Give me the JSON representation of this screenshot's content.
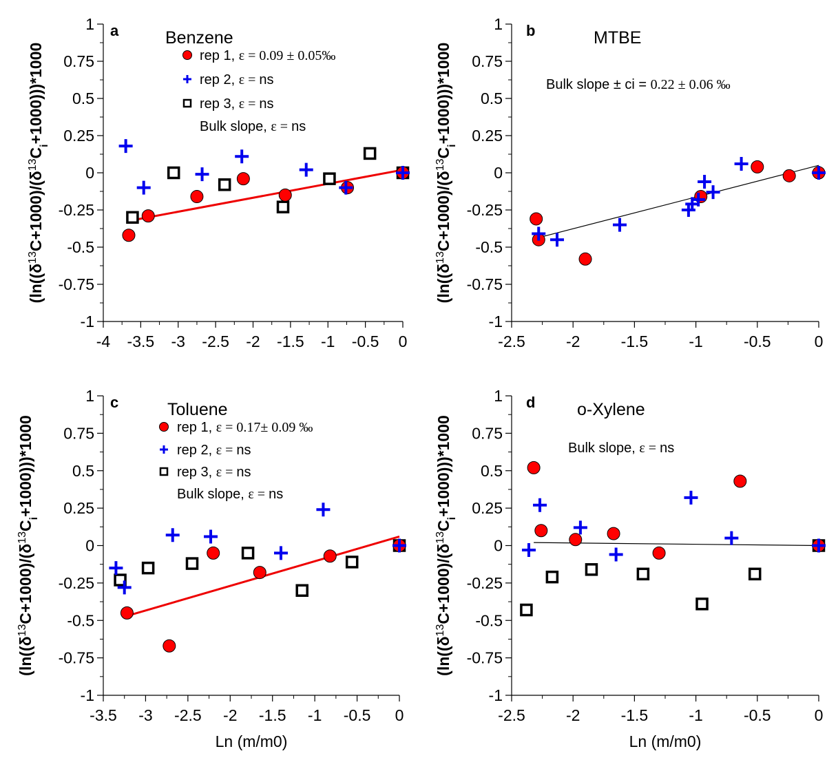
{
  "colors": {
    "rep1_fill": "#ff0000",
    "rep2": "#0000ee",
    "rep3": "#000000",
    "fit_red": "#ee0000",
    "fit_black": "#000000"
  },
  "chart_data": [
    {
      "type": "scatter",
      "letter": "a",
      "title": "Benzene",
      "xlim": [
        -4,
        0
      ],
      "ylim": [
        -1,
        1
      ],
      "xticks": [
        -4,
        -3.5,
        -3,
        -2.5,
        -2,
        -1.5,
        -1,
        -0.5,
        0
      ],
      "xticklabels": [
        "-4",
        "-3.5",
        "-3",
        "-2.5",
        "-2",
        "-1.5",
        "-1",
        "-0.5",
        "0"
      ],
      "yticks": [
        1,
        0.75,
        0.5,
        0.25,
        0,
        -0.25,
        -0.5,
        -0.75,
        -1
      ],
      "yticklabels": [
        "1",
        "0.75",
        "0.5",
        "0.25",
        "0",
        "-0.25",
        "-0.5",
        "-0.75",
        "-1"
      ],
      "ylabel_parts": [
        "(ln((δ",
        "13",
        "C+1000)/(δ",
        "13",
        "C",
        "i",
        "+1000)))*1000"
      ],
      "xlabel": "",
      "legend": [
        {
          "marker": "circle",
          "prefix": "rep 1, ",
          "eps": "ε = ",
          "value": " 0.09 ± 0.05‰"
        },
        {
          "marker": "plus",
          "prefix": "rep 2, ",
          "eps": "ε = ",
          "value": "ns"
        },
        {
          "marker": "square",
          "prefix": "rep 3, ",
          "eps": "ε = ",
          "value": "ns"
        },
        {
          "marker": "none",
          "prefix": "Bulk slope, ",
          "eps": "ε = ",
          "value": " ns"
        }
      ],
      "series": [
        {
          "marker": "circle",
          "x": [
            -3.66,
            -3.4,
            -2.75,
            -2.13,
            -1.57,
            -0.74,
            0
          ],
          "y": [
            -0.42,
            -0.29,
            -0.16,
            -0.04,
            -0.15,
            -0.1,
            0
          ]
        },
        {
          "marker": "plus",
          "x": [
            -3.7,
            -3.46,
            -2.68,
            -2.15,
            -1.29,
            -0.76,
            0
          ],
          "y": [
            0.18,
            -0.1,
            -0.01,
            0.11,
            0.02,
            -0.1,
            0
          ]
        },
        {
          "marker": "square",
          "x": [
            -3.61,
            -3.06,
            -2.38,
            -1.6,
            -0.98,
            -0.44,
            0
          ],
          "y": [
            -0.3,
            0,
            -0.08,
            -0.23,
            -0.04,
            0.13,
            0
          ]
        }
      ],
      "fit": {
        "color": "red",
        "x": [
          -3.62,
          0
        ],
        "y": [
          -0.32,
          0.02
        ]
      }
    },
    {
      "type": "scatter",
      "letter": "b",
      "title": "MTBE",
      "xlim": [
        -2.5,
        0
      ],
      "ylim": [
        -1,
        1
      ],
      "xticks": [
        -2.5,
        -2,
        -1.5,
        -1,
        -0.5,
        0
      ],
      "xticklabels": [
        "-2.5",
        "-2",
        "-1.5",
        "-1",
        "-0.5",
        "0"
      ],
      "yticks": [
        1,
        0.75,
        0.5,
        0.25,
        0,
        -0.25,
        -0.5,
        -0.75,
        -1
      ],
      "yticklabels": [
        "1",
        "0.75",
        "0.5",
        "0.25",
        "0",
        "-0.25",
        "-0.5",
        "-0.75",
        "-1"
      ],
      "ylabel_parts": [
        "(ln((δ",
        "13",
        "C+1000)/(δ",
        "13",
        "C",
        "i",
        "+1000)))*1000"
      ],
      "xlabel": "",
      "legend": [
        {
          "marker": "none",
          "prefix": "Bulk slope ± ci = ",
          "eps": "",
          "value": "0.22 ± 0.06 ‰"
        }
      ],
      "series": [
        {
          "marker": "circle",
          "x": [
            -2.3,
            -2.28,
            -1.9,
            -0.96,
            -0.5,
            -0.24,
            0
          ],
          "y": [
            -0.31,
            -0.45,
            -0.58,
            -0.16,
            0.04,
            -0.02,
            0
          ]
        },
        {
          "marker": "plus",
          "x": [
            -2.28,
            -2.13,
            -1.62,
            -1.06,
            -1.03,
            -0.98,
            -0.93,
            -0.86,
            -0.63,
            0
          ],
          "y": [
            -0.41,
            -0.45,
            -0.35,
            -0.25,
            -0.21,
            -0.18,
            -0.06,
            -0.13,
            0.06,
            0
          ]
        }
      ],
      "fit": {
        "color": "black",
        "x": [
          -2.3,
          0
        ],
        "y": [
          -0.44,
          0.05
        ]
      }
    },
    {
      "type": "scatter",
      "letter": "c",
      "title": "Toluene",
      "xlim": [
        -3.5,
        0
      ],
      "ylim": [
        -1,
        1
      ],
      "xticks": [
        -3.5,
        -3,
        -2.5,
        -2,
        -1.5,
        -1,
        -0.5,
        0
      ],
      "xticklabels": [
        "-3.5",
        "-3",
        "-2.5",
        "-2",
        "-1.5",
        "-1",
        "-0.5",
        "0"
      ],
      "yticks": [
        1,
        0.75,
        0.5,
        0.25,
        0,
        -0.25,
        -0.5,
        -0.75,
        -1
      ],
      "yticklabels": [
        "1",
        "0.75",
        "0.5",
        "0.25",
        "0",
        "-0.25",
        "-0.5",
        "-0.75",
        "-1"
      ],
      "ylabel_parts": [
        "(ln((δ",
        "13",
        "C+1000)/(δ",
        "13",
        "C",
        "i",
        "+1000)))*1000"
      ],
      "xlabel": "Ln (m/m0)",
      "legend": [
        {
          "marker": "circle",
          "prefix": "rep 1, ",
          "eps": "ε = ",
          "value": " 0.17± 0.09 ‰"
        },
        {
          "marker": "plus",
          "prefix": "rep 2, ",
          "eps": "ε = ",
          "value": " ns"
        },
        {
          "marker": "square",
          "prefix": "rep 3, ",
          "eps": "ε = ",
          "value": " ns"
        },
        {
          "marker": "none",
          "prefix": "Bulk slope, ",
          "eps": "ε = ",
          "value": " ns"
        }
      ],
      "series": [
        {
          "marker": "circle",
          "x": [
            -3.22,
            -2.72,
            -2.2,
            -1.65,
            -0.82,
            0
          ],
          "y": [
            -0.45,
            -0.67,
            -0.05,
            -0.18,
            -0.07,
            0
          ]
        },
        {
          "marker": "plus",
          "x": [
            -3.35,
            -3.25,
            -2.68,
            -2.23,
            -1.4,
            -0.9,
            0
          ],
          "y": [
            -0.15,
            -0.28,
            0.07,
            0.06,
            -0.05,
            0.24,
            0
          ]
        },
        {
          "marker": "square",
          "x": [
            -3.3,
            -2.97,
            -2.45,
            -1.79,
            -1.15,
            -0.56,
            0
          ],
          "y": [
            -0.23,
            -0.15,
            -0.12,
            -0.05,
            -0.3,
            -0.11,
            0
          ]
        }
      ],
      "fit": {
        "color": "red",
        "x": [
          -3.22,
          0
        ],
        "y": [
          -0.47,
          0.06
        ]
      }
    },
    {
      "type": "scatter",
      "letter": "d",
      "title": "o-Xylene",
      "xlim": [
        -2.5,
        0
      ],
      "ylim": [
        -1,
        1
      ],
      "xticks": [
        -2.5,
        -2,
        -1.5,
        -1,
        -0.5,
        0
      ],
      "xticklabels": [
        "-2.5",
        "-2",
        "-1.5",
        "-1",
        "-0.5",
        "0"
      ],
      "yticks": [
        1,
        0.75,
        0.5,
        0.25,
        0,
        -0.25,
        -0.5,
        -0.75,
        -1
      ],
      "yticklabels": [
        "1",
        "0.75",
        "0.5",
        "0.25",
        "0",
        "-0.25",
        "-0.5",
        "-0.75",
        "-1"
      ],
      "ylabel_parts": [
        "(ln((δ",
        "13",
        "C+1000)/(δ",
        "13",
        "C",
        "i",
        "+1000)))*1000"
      ],
      "xlabel": "Ln (m/m0)",
      "legend": [
        {
          "marker": "none",
          "prefix": "Bulk slope, ",
          "eps": "ε = ",
          "value": " ns"
        }
      ],
      "series": [
        {
          "marker": "circle",
          "x": [
            -2.32,
            -2.26,
            -1.98,
            -1.67,
            -1.3,
            -0.64,
            0
          ],
          "y": [
            0.52,
            0.1,
            0.04,
            0.08,
            -0.05,
            0.43,
            0
          ]
        },
        {
          "marker": "plus",
          "x": [
            -2.36,
            -2.27,
            -1.94,
            -1.65,
            -1.04,
            -0.71,
            0
          ],
          "y": [
            -0.03,
            0.27,
            0.12,
            -0.06,
            0.32,
            0.05,
            0
          ]
        },
        {
          "marker": "square",
          "x": [
            -2.38,
            -2.17,
            -1.85,
            -1.43,
            -0.95,
            -0.52,
            0
          ],
          "y": [
            -0.43,
            -0.21,
            -0.16,
            -0.19,
            -0.39,
            -0.19,
            0
          ]
        }
      ],
      "fit": {
        "color": "black",
        "x": [
          -2.32,
          0
        ],
        "y": [
          0.02,
          0
        ]
      }
    }
  ]
}
